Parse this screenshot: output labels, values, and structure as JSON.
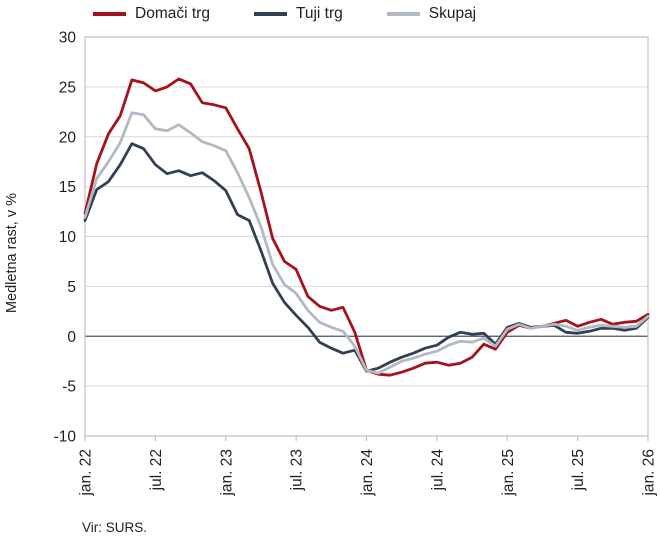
{
  "source_note": "Vir: SURS.",
  "chart_data": {
    "type": "line",
    "title": "",
    "xlabel": "",
    "ylabel": "Medletna rast, v %",
    "ylim": [
      -10,
      30
    ],
    "y_ticks": [
      30,
      25,
      20,
      15,
      10,
      5,
      0,
      -5,
      -10
    ],
    "x_tick_labels": [
      "jan. 22",
      "jul. 22",
      "jan. 23",
      "jul. 23",
      "jan. 24",
      "jul. 24",
      "jan. 25",
      "jul. 25",
      "jan. 26"
    ],
    "x_tick_positions": [
      0,
      6,
      12,
      18,
      24,
      30,
      36,
      42,
      48
    ],
    "x_unit": "month",
    "n_points": 49,
    "grid": "horizontal",
    "legend_position": "top",
    "zero_line_color": "#44546A",
    "gridline_color": "#D9D9D9",
    "border_color": "#BFBFBF",
    "tick_color": "#BFBFBF",
    "text_color": "#1F1F1F",
    "series": [
      {
        "name": "Domači trg",
        "color": "#A6121B",
        "values": [
          12.3,
          17.3,
          20.3,
          22.1,
          25.7,
          25.4,
          24.6,
          25.0,
          25.8,
          25.3,
          23.4,
          23.2,
          22.9,
          20.8,
          18.8,
          14.5,
          9.8,
          7.5,
          6.7,
          4.0,
          3.0,
          2.6,
          2.9,
          0.4,
          -3.4,
          -3.8,
          -3.9,
          -3.6,
          -3.2,
          -2.7,
          -2.6,
          -2.9,
          -2.7,
          -2.1,
          -0.8,
          -1.3,
          0.4,
          1.1,
          0.8,
          1.0,
          1.3,
          1.6,
          1.0,
          1.4,
          1.7,
          1.2,
          1.4,
          1.5,
          2.2
        ]
      },
      {
        "name": "Tuji trg",
        "color": "#333F55",
        "values": [
          11.6,
          14.7,
          15.5,
          17.2,
          19.3,
          18.8,
          17.2,
          16.3,
          16.6,
          16.1,
          16.4,
          15.6,
          14.6,
          12.2,
          11.6,
          8.6,
          5.3,
          3.4,
          2.1,
          0.9,
          -0.6,
          -1.2,
          -1.7,
          -1.4,
          -3.5,
          -3.2,
          -2.6,
          -2.1,
          -1.7,
          -1.2,
          -0.9,
          -0.1,
          0.4,
          0.2,
          0.3,
          -0.8,
          0.9,
          1.3,
          0.9,
          1.0,
          1.1,
          0.4,
          0.3,
          0.5,
          0.8,
          0.8,
          0.6,
          0.8,
          1.9
        ]
      },
      {
        "name": "Skupaj",
        "color": "#B1B9C3",
        "values": [
          11.9,
          15.8,
          17.5,
          19.4,
          22.4,
          22.2,
          20.8,
          20.6,
          21.2,
          20.4,
          19.5,
          19.1,
          18.6,
          16.4,
          13.9,
          11.0,
          7.2,
          5.2,
          4.3,
          2.6,
          1.4,
          0.9,
          0.5,
          -1.0,
          -3.4,
          -3.7,
          -3.1,
          -2.5,
          -2.2,
          -1.8,
          -1.5,
          -0.9,
          -0.5,
          -0.6,
          -0.2,
          -1.0,
          0.7,
          1.2,
          0.8,
          1.0,
          1.2,
          1.0,
          0.6,
          0.9,
          1.1,
          1.0,
          0.9,
          1.0,
          2.0
        ]
      }
    ]
  }
}
